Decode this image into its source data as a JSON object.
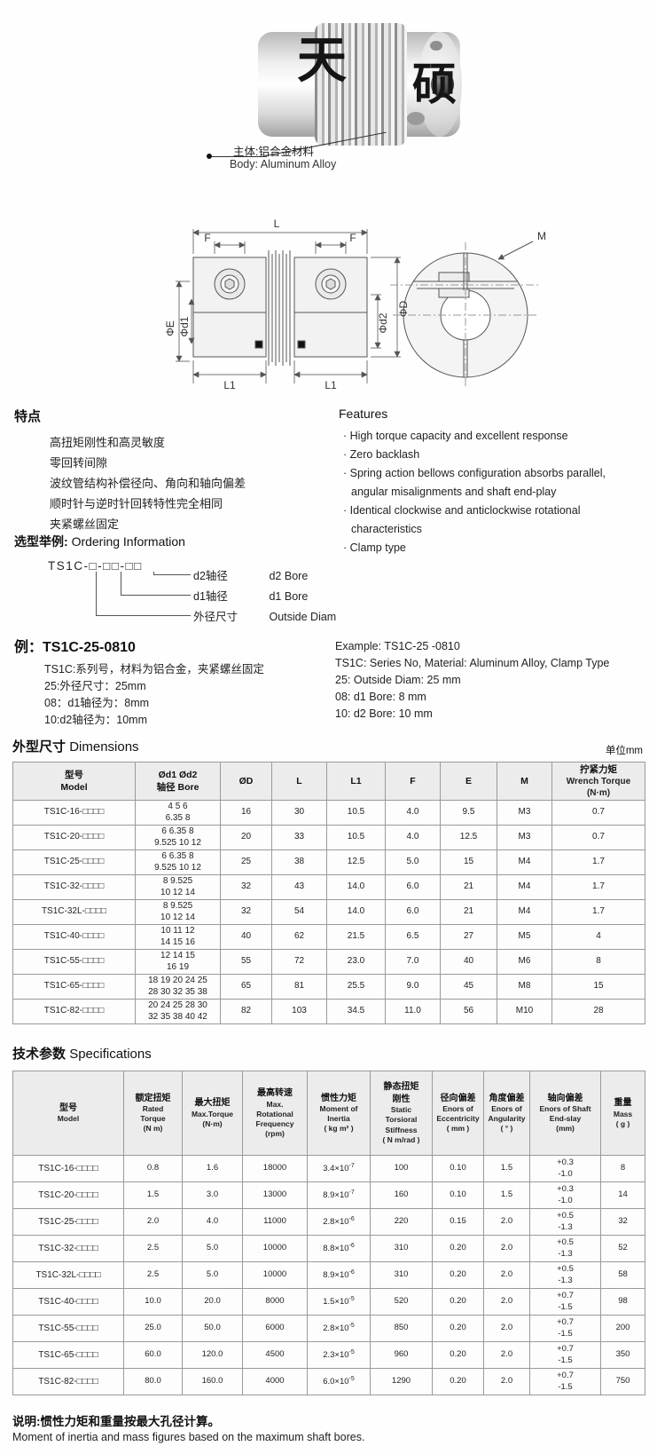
{
  "product": {
    "watermark_char1": "天",
    "watermark_char2": "硕",
    "callout_cn": "主体:铝合金材料",
    "callout_en": "Body: Aluminum  Alloy"
  },
  "drawing": {
    "labels": {
      "L": "L",
      "F": "F",
      "E": "ΦE",
      "d1": "Φd1",
      "d2": "Φd2",
      "D": "ΦD",
      "L1": "L1",
      "M": "M"
    }
  },
  "features": {
    "title_cn": "特点",
    "items_cn": [
      "高扭矩刚性和高灵敏度",
      "零回转间隙",
      "波纹管结构补偿径向、角向和轴向偏差",
      "顺时针与逆时针回转特性完全相同",
      "夹紧螺丝固定"
    ],
    "title_en": "Features",
    "items_en": [
      "High torque capacity and excellent response",
      "Zero backlash",
      "Spring action bellows configuration absorbs parallel, angular misalignments and shaft end-play",
      "Identical clockwise and anticlockwise rotational characteristics",
      "Clamp type"
    ]
  },
  "ordering": {
    "title_cn": "选型举例:",
    "title_en": "Ordering Information",
    "code": "TS1C-□-□□-□□",
    "legend": [
      {
        "cn": "d2轴径",
        "en": "d2 Bore"
      },
      {
        "cn": "d1轴径",
        "en": "d1 Bore"
      },
      {
        "cn": "外径尺寸",
        "en": "Outside Diam"
      }
    ]
  },
  "example": {
    "title_cn": "例：TS1C-25-0810",
    "lines_cn": [
      "TS1C:系列号，材料为铝合金，夹紧螺丝固定",
      "25:外径尺寸：25mm",
      "08：d1轴径为：8mm",
      "10:d2轴径为：10mm"
    ],
    "lines_en": [
      "Example: TS1C-25 -0810",
      "TS1C: Series  No, Material: Aluminum  Alloy, Clamp Type",
      "25: Outside  Diam: 25 mm",
      "08: d1  Bore: 8 mm",
      "10: d2  Bore: 10 mm"
    ]
  },
  "dimensions": {
    "title_cn": "外型尺寸",
    "title_en": "Dimensions",
    "unit": "单位mm",
    "headers": [
      {
        "cn": [
          "型号",
          "Model"
        ]
      },
      {
        "cn": [
          "Ød1 Ød2",
          "轴径 Bore"
        ]
      },
      {
        "cn": [
          "ØD"
        ]
      },
      {
        "cn": [
          "L"
        ]
      },
      {
        "cn": [
          "L1"
        ]
      },
      {
        "cn": [
          "F"
        ]
      },
      {
        "cn": [
          "E"
        ]
      },
      {
        "cn": [
          "M"
        ]
      },
      {
        "cn": [
          "拧紧力矩"
        ],
        "en": [
          "Wrench Torque",
          "(N·m)"
        ]
      }
    ],
    "rows": [
      {
        "model": "TS1C-16-□□□□",
        "bore": [
          "4 5 6",
          "6.35 8"
        ],
        "D": "16",
        "L": "30",
        "L1": "10.5",
        "F": "4.0",
        "E": "9.5",
        "M": "M3",
        "torque": "0.7"
      },
      {
        "model": "TS1C-20-□□□□",
        "bore": [
          "6 6.35 8",
          "9.525 10 12"
        ],
        "D": "20",
        "L": "33",
        "L1": "10.5",
        "F": "4.0",
        "E": "12.5",
        "M": "M3",
        "torque": "0.7"
      },
      {
        "model": "TS1C-25-□□□□",
        "bore": [
          "6 6.35 8",
          "9.525 10 12"
        ],
        "D": "25",
        "L": "38",
        "L1": "12.5",
        "F": "5.0",
        "E": "15",
        "M": "M4",
        "torque": "1.7"
      },
      {
        "model": "TS1C-32-□□□□",
        "bore": [
          "8 9.525",
          "10 12 14"
        ],
        "D": "32",
        "L": "43",
        "L1": "14.0",
        "F": "6.0",
        "E": "21",
        "M": "M4",
        "torque": "1.7"
      },
      {
        "model": "TS1C-32L-□□□□",
        "bore": [
          "8 9.525",
          "10 12 14"
        ],
        "D": "32",
        "L": "54",
        "L1": "14.0",
        "F": "6.0",
        "E": "21",
        "M": "M4",
        "torque": "1.7"
      },
      {
        "model": "TS1C-40-□□□□",
        "bore": [
          "10 11 12",
          "14 15 16"
        ],
        "D": "40",
        "L": "62",
        "L1": "21.5",
        "F": "6.5",
        "E": "27",
        "M": "M5",
        "torque": "4"
      },
      {
        "model": "TS1C-55-□□□□",
        "bore": [
          "12 14 15",
          "16 19"
        ],
        "D": "55",
        "L": "72",
        "L1": "23.0",
        "F": "7.0",
        "E": "40",
        "M": "M6",
        "torque": "8"
      },
      {
        "model": "TS1C-65-□□□□",
        "bore": [
          "18 19 20 24 25",
          "28 30 32 35 38"
        ],
        "D": "65",
        "L": "81",
        "L1": "25.5",
        "F": "9.0",
        "E": "45",
        "M": "M8",
        "torque": "15"
      },
      {
        "model": "TS1C-82-□□□□",
        "bore": [
          "20 24 25 28 30",
          "32 35 38 40 42"
        ],
        "D": "82",
        "L": "103",
        "L1": "34.5",
        "F": "11.0",
        "E": "56",
        "M": "M10",
        "torque": "28"
      }
    ]
  },
  "specs": {
    "title_cn": "技术参数",
    "title_en": "Specifications",
    "headers": [
      {
        "cn": [
          "型号"
        ],
        "en": [
          "Model"
        ]
      },
      {
        "cn": [
          "额定扭矩"
        ],
        "en": [
          "Rated",
          "Torque",
          "(N m)"
        ]
      },
      {
        "cn": [
          "最大扭矩"
        ],
        "en": [
          "Max.Torque",
          "(N·m)"
        ]
      },
      {
        "cn": [
          "最高转速"
        ],
        "en": [
          "Max.",
          "Rotational",
          "Frequency",
          "(rpm)"
        ]
      },
      {
        "cn": [
          "惯性力矩"
        ],
        "en": [
          "Moment of",
          "Inertia",
          "( kg m² )"
        ]
      },
      {
        "cn": [
          "静态扭矩",
          "刚性"
        ],
        "en": [
          "Static",
          "Torsioral",
          "Stiffness",
          "( N m/rad )"
        ]
      },
      {
        "cn": [
          "径向偏差"
        ],
        "en": [
          "Enors of",
          "Eccentricity",
          "( mm )"
        ]
      },
      {
        "cn": [
          "角度偏差"
        ],
        "en": [
          "Enors of",
          "Angularity",
          "( ° )"
        ]
      },
      {
        "cn": [
          "轴向偏差"
        ],
        "en": [
          "Enors of Shaft",
          "End-slay",
          "(mm)"
        ]
      },
      {
        "cn": [
          "重量"
        ],
        "en": [
          "Mass",
          "( g )"
        ]
      }
    ],
    "rows": [
      {
        "model": "TS1C-16-□□□□",
        "rated": "0.8",
        "max": "1.6",
        "rpm": "18000",
        "inertia": {
          "t": "3.4×10",
          "sup": "-7"
        },
        "stiffness": "100",
        "ecc": "0.10",
        "ang": "1.5",
        "axial": [
          "+0.3",
          "-1.0"
        ],
        "mass": "8"
      },
      {
        "model": "TS1C-20-□□□□",
        "rated": "1.5",
        "max": "3.0",
        "rpm": "13000",
        "inertia": {
          "t": "8.9×10",
          "sup": "-7"
        },
        "stiffness": "160",
        "ecc": "0.10",
        "ang": "1.5",
        "axial": [
          "+0.3",
          "-1.0"
        ],
        "mass": "14"
      },
      {
        "model": "TS1C-25-□□□□",
        "rated": "2.0",
        "max": "4.0",
        "rpm": "11000",
        "inertia": {
          "t": "2.8×10",
          "sup": "-6"
        },
        "stiffness": "220",
        "ecc": "0.15",
        "ang": "2.0",
        "axial": [
          "+0.5",
          "-1.3"
        ],
        "mass": "32"
      },
      {
        "model": "TS1C-32-□□□□",
        "rated": "2.5",
        "max": "5.0",
        "rpm": "10000",
        "inertia": {
          "t": "8.8×10",
          "sup": "-6"
        },
        "stiffness": "310",
        "ecc": "0.20",
        "ang": "2.0",
        "axial": [
          "+0.5",
          "-1.3"
        ],
        "mass": "52"
      },
      {
        "model": "TS1C-32L-□□□□",
        "rated": "2.5",
        "max": "5.0",
        "rpm": "10000",
        "inertia": {
          "t": "8.9×10",
          "sup": "-6"
        },
        "stiffness": "310",
        "ecc": "0.20",
        "ang": "2.0",
        "axial": [
          "+0.5",
          "-1.3"
        ],
        "mass": "58"
      },
      {
        "model": "TS1C-40-□□□□",
        "rated": "10.0",
        "max": "20.0",
        "rpm": "8000",
        "inertia": {
          "t": "1.5×10",
          "sup": "-5"
        },
        "stiffness": "520",
        "ecc": "0.20",
        "ang": "2.0",
        "axial": [
          "+0.7",
          "-1.5"
        ],
        "mass": "98"
      },
      {
        "model": "TS1C-55-□□□□",
        "rated": "25.0",
        "max": "50.0",
        "rpm": "6000",
        "inertia": {
          "t": "2.8×10",
          "sup": "-5"
        },
        "stiffness": "850",
        "ecc": "0.20",
        "ang": "2.0",
        "axial": [
          "+0.7",
          "-1.5"
        ],
        "mass": "200"
      },
      {
        "model": "TS1C-65-□□□□",
        "rated": "60.0",
        "max": "120.0",
        "rpm": "4500",
        "inertia": {
          "t": "2.3×10",
          "sup": "-5"
        },
        "stiffness": "960",
        "ecc": "0.20",
        "ang": "2.0",
        "axial": [
          "+0.7",
          "-1.5"
        ],
        "mass": "350"
      },
      {
        "model": "TS1C-82-□□□□",
        "rated": "80.0",
        "max": "160.0",
        "rpm": "4000",
        "inertia": {
          "t": "6.0×10",
          "sup": "-5"
        },
        "stiffness": "1290",
        "ecc": "0.20",
        "ang": "2.0",
        "axial": [
          "+0.7",
          "-1.5"
        ],
        "mass": "750"
      }
    ]
  },
  "footnote": {
    "cn": "说明:惯性力矩和重量按最大孔径计算。",
    "en": "Moment of inertia and mass figures based on the maximum shaft bores."
  }
}
